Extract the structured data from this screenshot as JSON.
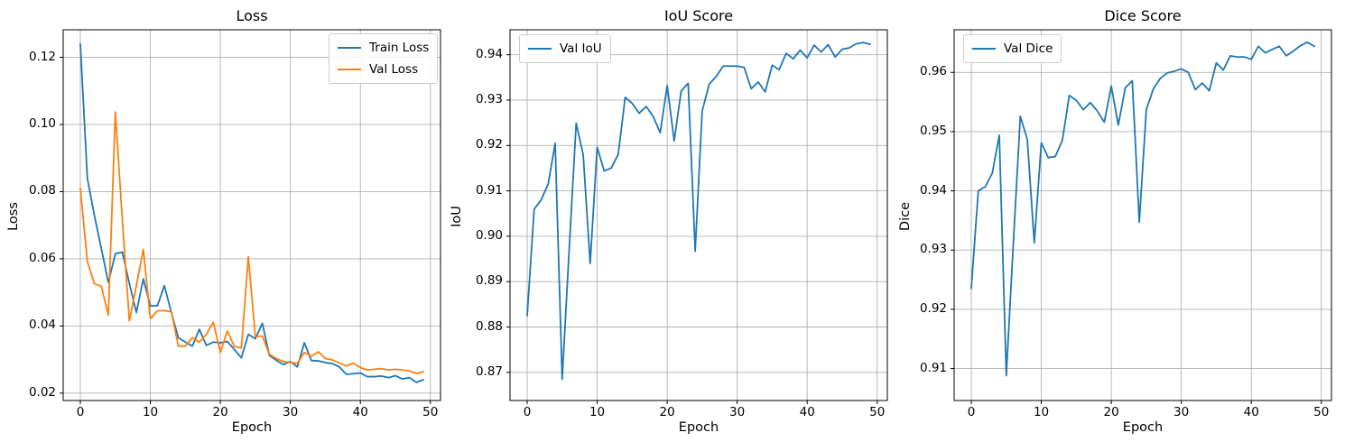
{
  "figure": {
    "background_color": "#ffffff",
    "grid_color": "#b0b0b0",
    "axes_color": "#000000",
    "text_color": "#000000"
  },
  "chart_data": [
    {
      "id": "loss",
      "type": "line",
      "title": "Loss",
      "xlabel": "Epoch",
      "ylabel": "Loss",
      "grid": true,
      "xlim": [
        -2.45,
        51.45
      ],
      "ylim": [
        0.0178,
        0.1282
      ],
      "xticks": [
        0,
        10,
        20,
        30,
        40,
        50
      ],
      "xtick_labels": [
        "0",
        "10",
        "20",
        "30",
        "40",
        "50"
      ],
      "yticks": [
        0.02,
        0.04,
        0.06,
        0.08,
        0.1,
        0.12
      ],
      "ytick_labels": [
        "0.02",
        "0.04",
        "0.06",
        "0.08",
        "0.10",
        "0.12"
      ],
      "legend": {
        "position": "top-right",
        "entries": [
          {
            "label": "Train Loss",
            "color": "#1f77b4"
          },
          {
            "label": "Val Loss",
            "color": "#ff7f0e"
          }
        ]
      },
      "epochs": [
        0,
        1,
        2,
        3,
        4,
        5,
        6,
        7,
        8,
        9,
        10,
        11,
        12,
        13,
        14,
        15,
        16,
        17,
        18,
        19,
        20,
        21,
        22,
        23,
        24,
        25,
        26,
        27,
        28,
        29,
        30,
        31,
        32,
        33,
        34,
        35,
        36,
        37,
        38,
        39,
        40,
        41,
        42,
        43,
        44,
        45,
        46,
        47,
        48,
        49
      ],
      "series": [
        {
          "name": "Train Loss",
          "color": "#1f77b4",
          "values": [
            0.124,
            0.084,
            0.073,
            0.063,
            0.053,
            0.0615,
            0.062,
            0.0527,
            0.044,
            0.054,
            0.046,
            0.046,
            0.052,
            0.044,
            0.0365,
            0.0352,
            0.034,
            0.039,
            0.0342,
            0.0352,
            0.035,
            0.0354,
            0.033,
            0.0305,
            0.0375,
            0.0362,
            0.0408,
            0.0312,
            0.0298,
            0.0285,
            0.0294,
            0.0278,
            0.035,
            0.0297,
            0.0296,
            0.0291,
            0.0288,
            0.0278,
            0.0256,
            0.0258,
            0.026,
            0.0249,
            0.0249,
            0.0251,
            0.0246,
            0.0252,
            0.0242,
            0.0246,
            0.0232,
            0.024
          ]
        },
        {
          "name": "Val Loss",
          "color": "#ff7f0e",
          "values": [
            0.081,
            0.0592,
            0.0526,
            0.0518,
            0.0432,
            0.1037,
            0.0715,
            0.0415,
            0.052,
            0.0628,
            0.0422,
            0.0445,
            0.0446,
            0.0442,
            0.034,
            0.034,
            0.0365,
            0.0352,
            0.0375,
            0.0411,
            0.0321,
            0.0385,
            0.0339,
            0.0334,
            0.0606,
            0.0368,
            0.037,
            0.0316,
            0.0303,
            0.0294,
            0.0291,
            0.0289,
            0.0321,
            0.031,
            0.0323,
            0.0303,
            0.0299,
            0.029,
            0.0281,
            0.0289,
            0.0276,
            0.0269,
            0.0271,
            0.0273,
            0.0269,
            0.0271,
            0.0269,
            0.0266,
            0.0258,
            0.0264
          ]
        }
      ]
    },
    {
      "id": "iou",
      "type": "line",
      "title": "IoU Score",
      "xlabel": "Epoch",
      "ylabel": "IoU",
      "grid": true,
      "xlim": [
        -2.45,
        51.45
      ],
      "ylim": [
        0.8638,
        0.9455
      ],
      "xticks": [
        0,
        10,
        20,
        30,
        40,
        50
      ],
      "xtick_labels": [
        "0",
        "10",
        "20",
        "30",
        "40",
        "50"
      ],
      "yticks": [
        0.87,
        0.88,
        0.89,
        0.9,
        0.91,
        0.92,
        0.93,
        0.94
      ],
      "ytick_labels": [
        "0.87",
        "0.88",
        "0.89",
        "0.90",
        "0.91",
        "0.92",
        "0.93",
        "0.94"
      ],
      "legend": {
        "position": "top-left",
        "entries": [
          {
            "label": "Val IoU",
            "color": "#1f77b4"
          }
        ]
      },
      "epochs": [
        0,
        1,
        2,
        3,
        4,
        5,
        6,
        7,
        8,
        9,
        10,
        11,
        12,
        13,
        14,
        15,
        16,
        17,
        18,
        19,
        20,
        21,
        22,
        23,
        24,
        25,
        26,
        27,
        28,
        29,
        30,
        31,
        32,
        33,
        34,
        35,
        36,
        37,
        38,
        39,
        40,
        41,
        42,
        43,
        44,
        45,
        46,
        47,
        48,
        49
      ],
      "series": [
        {
          "name": "Val IoU",
          "color": "#1f77b4",
          "values": [
            0.8825,
            0.906,
            0.908,
            0.9115,
            0.9205,
            0.8685,
            0.897,
            0.9249,
            0.918,
            0.894,
            0.9196,
            0.9144,
            0.915,
            0.918,
            0.9306,
            0.9293,
            0.9271,
            0.9286,
            0.9264,
            0.9228,
            0.9332,
            0.921,
            0.932,
            0.9337,
            0.8967,
            0.9276,
            0.9335,
            0.9352,
            0.9375,
            0.9375,
            0.9375,
            0.9372,
            0.9325,
            0.934,
            0.9318,
            0.9377,
            0.9367,
            0.9403,
            0.9391,
            0.941,
            0.9393,
            0.9421,
            0.9406,
            0.9422,
            0.9395,
            0.9412,
            0.9415,
            0.9424,
            0.9427,
            0.9423
          ]
        }
      ]
    },
    {
      "id": "dice",
      "type": "line",
      "title": "Dice Score",
      "xlabel": "Epoch",
      "ylabel": "Dice",
      "grid": true,
      "xlim": [
        -2.45,
        51.45
      ],
      "ylim": [
        0.9046,
        0.9672
      ],
      "xticks": [
        0,
        10,
        20,
        30,
        40,
        50
      ],
      "xtick_labels": [
        "0",
        "10",
        "20",
        "30",
        "40",
        "50"
      ],
      "yticks": [
        0.91,
        0.92,
        0.93,
        0.94,
        0.95,
        0.96
      ],
      "ytick_labels": [
        "0.91",
        "0.92",
        "0.93",
        "0.94",
        "0.95",
        "0.96"
      ],
      "legend": {
        "position": "top-left",
        "entries": [
          {
            "label": "Val Dice",
            "color": "#1f77b4"
          }
        ]
      },
      "epochs": [
        0,
        1,
        2,
        3,
        4,
        5,
        6,
        7,
        8,
        9,
        10,
        11,
        12,
        13,
        14,
        15,
        16,
        17,
        18,
        19,
        20,
        21,
        22,
        23,
        24,
        25,
        26,
        27,
        28,
        29,
        30,
        31,
        32,
        33,
        34,
        35,
        36,
        37,
        38,
        39,
        40,
        41,
        42,
        43,
        44,
        45,
        46,
        47,
        48,
        49
      ],
      "series": [
        {
          "name": "Val Dice",
          "color": "#1f77b4",
          "values": [
            0.9235,
            0.94,
            0.9407,
            0.943,
            0.9494,
            0.9088,
            0.931,
            0.9526,
            0.9487,
            0.9312,
            0.9481,
            0.9456,
            0.9458,
            0.9485,
            0.9561,
            0.9553,
            0.9537,
            0.9549,
            0.9535,
            0.9516,
            0.9577,
            0.9511,
            0.9574,
            0.9586,
            0.9347,
            0.9537,
            0.9572,
            0.959,
            0.9599,
            0.9602,
            0.9606,
            0.96,
            0.9571,
            0.9582,
            0.9569,
            0.9616,
            0.9604,
            0.9628,
            0.9626,
            0.9626,
            0.9622,
            0.9644,
            0.9633,
            0.9639,
            0.9644,
            0.9628,
            0.9636,
            0.9645,
            0.9651,
            0.9644
          ]
        }
      ]
    }
  ]
}
